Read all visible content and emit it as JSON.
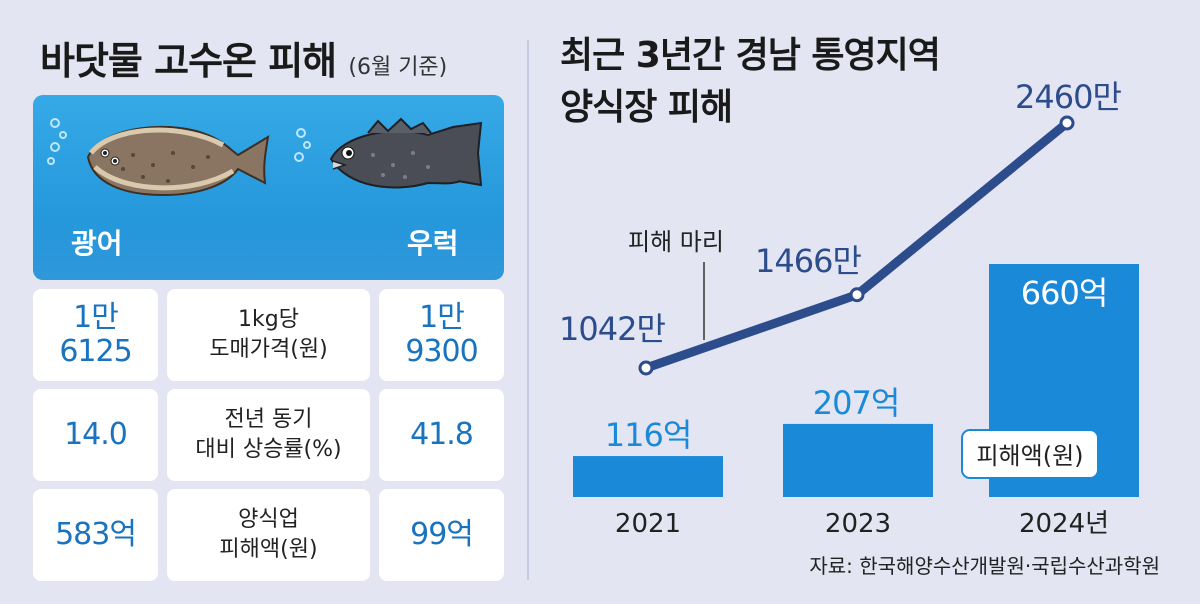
{
  "left": {
    "title": "바닷물 고수온 피해",
    "subtitle": "(6월 기준)",
    "fish": [
      {
        "name": "광어",
        "icon": "flatfish-icon"
      },
      {
        "name": "우럭",
        "icon": "rockfish-icon"
      }
    ],
    "rows": [
      {
        "label_line1": "1kg당",
        "label_line2": "도매가격(원)",
        "left_line1": "1만",
        "left_line2": "6125",
        "right_line1": "1만",
        "right_line2": "9300"
      },
      {
        "label_line1": "전년 동기",
        "label_line2": "대비 상승률(%)",
        "left_line1": "14.0",
        "left_line2": "",
        "right_line1": "41.8",
        "right_line2": ""
      },
      {
        "label_line1": "양식업",
        "label_line2": "피해액(원)",
        "left_line1": "583억",
        "left_line2": "",
        "right_line1": "99억",
        "right_line2": ""
      }
    ]
  },
  "right": {
    "title_line1": "최근 3년간 경남 통영지역",
    "title_line2": "양식장 피해"
  },
  "source": "자료: 한국해양수산개발원·국립수산과학원",
  "colors": {
    "accent": "#1a73bf",
    "bar": "#1a8ad8",
    "line": "#2c4c8c",
    "bg": "#e3e6f2"
  },
  "chart_data": {
    "type": "bar",
    "categories": [
      "2021",
      "2023",
      "2024년"
    ],
    "series": [
      {
        "name": "피해액(원)",
        "type": "bar",
        "values": [
          116,
          207,
          660
        ],
        "labels": [
          "116억",
          "207억",
          "660억"
        ],
        "unit": "억"
      },
      {
        "name": "피해 마리",
        "type": "line",
        "values": [
          1042,
          1466,
          2460
        ],
        "labels": [
          "1042만",
          "1466만",
          "2460만"
        ],
        "unit": "만"
      }
    ],
    "legend": [
      "피해 마리",
      "피해액(원)"
    ],
    "title": "최근 3년간 경남 통영지역 양식장 피해",
    "xlabel": "",
    "ylabel": ""
  }
}
